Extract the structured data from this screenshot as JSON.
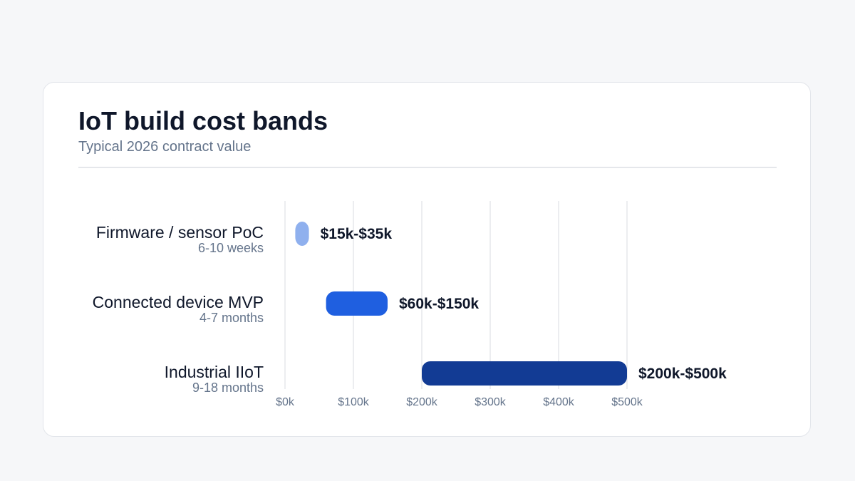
{
  "header": {
    "title": "IoT build cost bands",
    "subtitle": "Typical 2026 contract value"
  },
  "chart_data": {
    "type": "bar",
    "orientation": "horizontal",
    "subtype": "range",
    "title": "IoT build cost bands",
    "subtitle": "Typical 2026 contract value",
    "xlabel": "",
    "ylabel": "",
    "x_unit": "USD (thousands)",
    "xlim": [
      0,
      500
    ],
    "x_ticks": [
      0,
      100,
      200,
      300,
      400,
      500
    ],
    "x_tick_labels": [
      "$0k",
      "$100k",
      "$200k",
      "$300k",
      "$400k",
      "$500k"
    ],
    "grid": "vertical",
    "legend": "none",
    "categories": [
      "Firmware / sensor PoC",
      "Connected device MVP",
      "Industrial IIoT"
    ],
    "durations": [
      "6-10 weeks",
      "4-7 months",
      "9-18 months"
    ],
    "ranges": [
      {
        "low": 15,
        "high": 35,
        "label": "$15k-$35k",
        "color": "#8fb0ee"
      },
      {
        "low": 60,
        "high": 150,
        "label": "$60k-$150k",
        "color": "#1f5fe0"
      },
      {
        "low": 200,
        "high": 500,
        "label": "$200k-$500k",
        "color": "#123b94"
      }
    ]
  }
}
